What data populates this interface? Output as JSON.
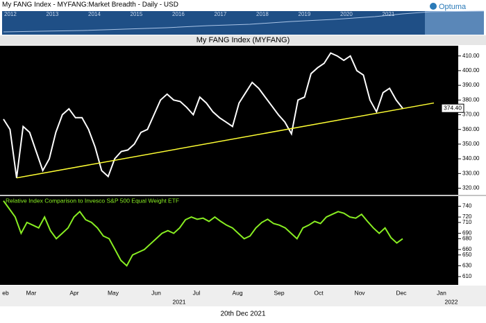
{
  "header": {
    "title": "My FANG Index - MYFANG:Market Breadth - Daily - USD",
    "logo": "Optuma",
    "navigator_years": [
      "2012",
      "2013",
      "2014",
      "2015",
      "2016",
      "2017",
      "2018",
      "2019",
      "2020",
      "2021"
    ]
  },
  "chart_data": {
    "type": "line",
    "title": "My FANG Index (MYFANG)",
    "series": [
      {
        "name": "MYFANG",
        "color": "#ffffff",
        "values": [
          367,
          360,
          327,
          362,
          358,
          345,
          332,
          340,
          358,
          370,
          374,
          368,
          368,
          360,
          348,
          332,
          328,
          340,
          345,
          346,
          350,
          358,
          360,
          370,
          380,
          384,
          380,
          379,
          375,
          370,
          382,
          378,
          372,
          368,
          365,
          362,
          378,
          385,
          392,
          388,
          382,
          376,
          370,
          365,
          357,
          380,
          382,
          398,
          402,
          405,
          412,
          410,
          407,
          410,
          400,
          397,
          380,
          372,
          385,
          388,
          380,
          374.4
        ]
      }
    ],
    "trendline": {
      "color": "#ffff33",
      "values": [
        327,
        378
      ]
    },
    "current_value_label": "374.40",
    "ylim": [
      316,
      416
    ],
    "yticks": [
      {
        "value": 320,
        "label": "320.00"
      },
      {
        "value": 330,
        "label": "330.00"
      },
      {
        "value": 340,
        "label": "340.00"
      },
      {
        "value": 350,
        "label": "350.00"
      },
      {
        "value": 360,
        "label": "360.00"
      },
      {
        "value": 370,
        "label": "370.00"
      },
      {
        "value": 380,
        "label": "380.00"
      },
      {
        "value": 390,
        "label": "390.00"
      },
      {
        "value": 400,
        "label": "400.00"
      },
      {
        "value": 410,
        "label": "410.00"
      }
    ],
    "lower": {
      "title": "Relative Index Comparison to Invesco S&P 500 Equal Weight ETF",
      "color": "#88ee22",
      "values": [
        750,
        735,
        720,
        690,
        710,
        705,
        700,
        720,
        695,
        680,
        690,
        700,
        720,
        730,
        715,
        710,
        700,
        685,
        680,
        660,
        640,
        630,
        650,
        655,
        660,
        670,
        680,
        690,
        695,
        690,
        700,
        715,
        720,
        716,
        718,
        712,
        720,
        712,
        705,
        700,
        690,
        680,
        685,
        700,
        710,
        716,
        708,
        705,
        700,
        690,
        680,
        700,
        705,
        712,
        708,
        720,
        725,
        730,
        727,
        720,
        718,
        725,
        712,
        700,
        690,
        700,
        682,
        672,
        680
      ],
      "ylim": [
        596,
        756
      ],
      "yticks": [
        610,
        630,
        650,
        660,
        680,
        690,
        710,
        720,
        740
      ]
    },
    "x_labels": [
      "eb",
      "Mar",
      "Apr",
      "May",
      "Jun",
      "Jul",
      "Aug",
      "Sep",
      "Oct",
      "Nov",
      "Dec",
      "Jan"
    ],
    "year_labels": [
      "2021",
      "2022"
    ],
    "footer": "20th Dec 2021"
  }
}
